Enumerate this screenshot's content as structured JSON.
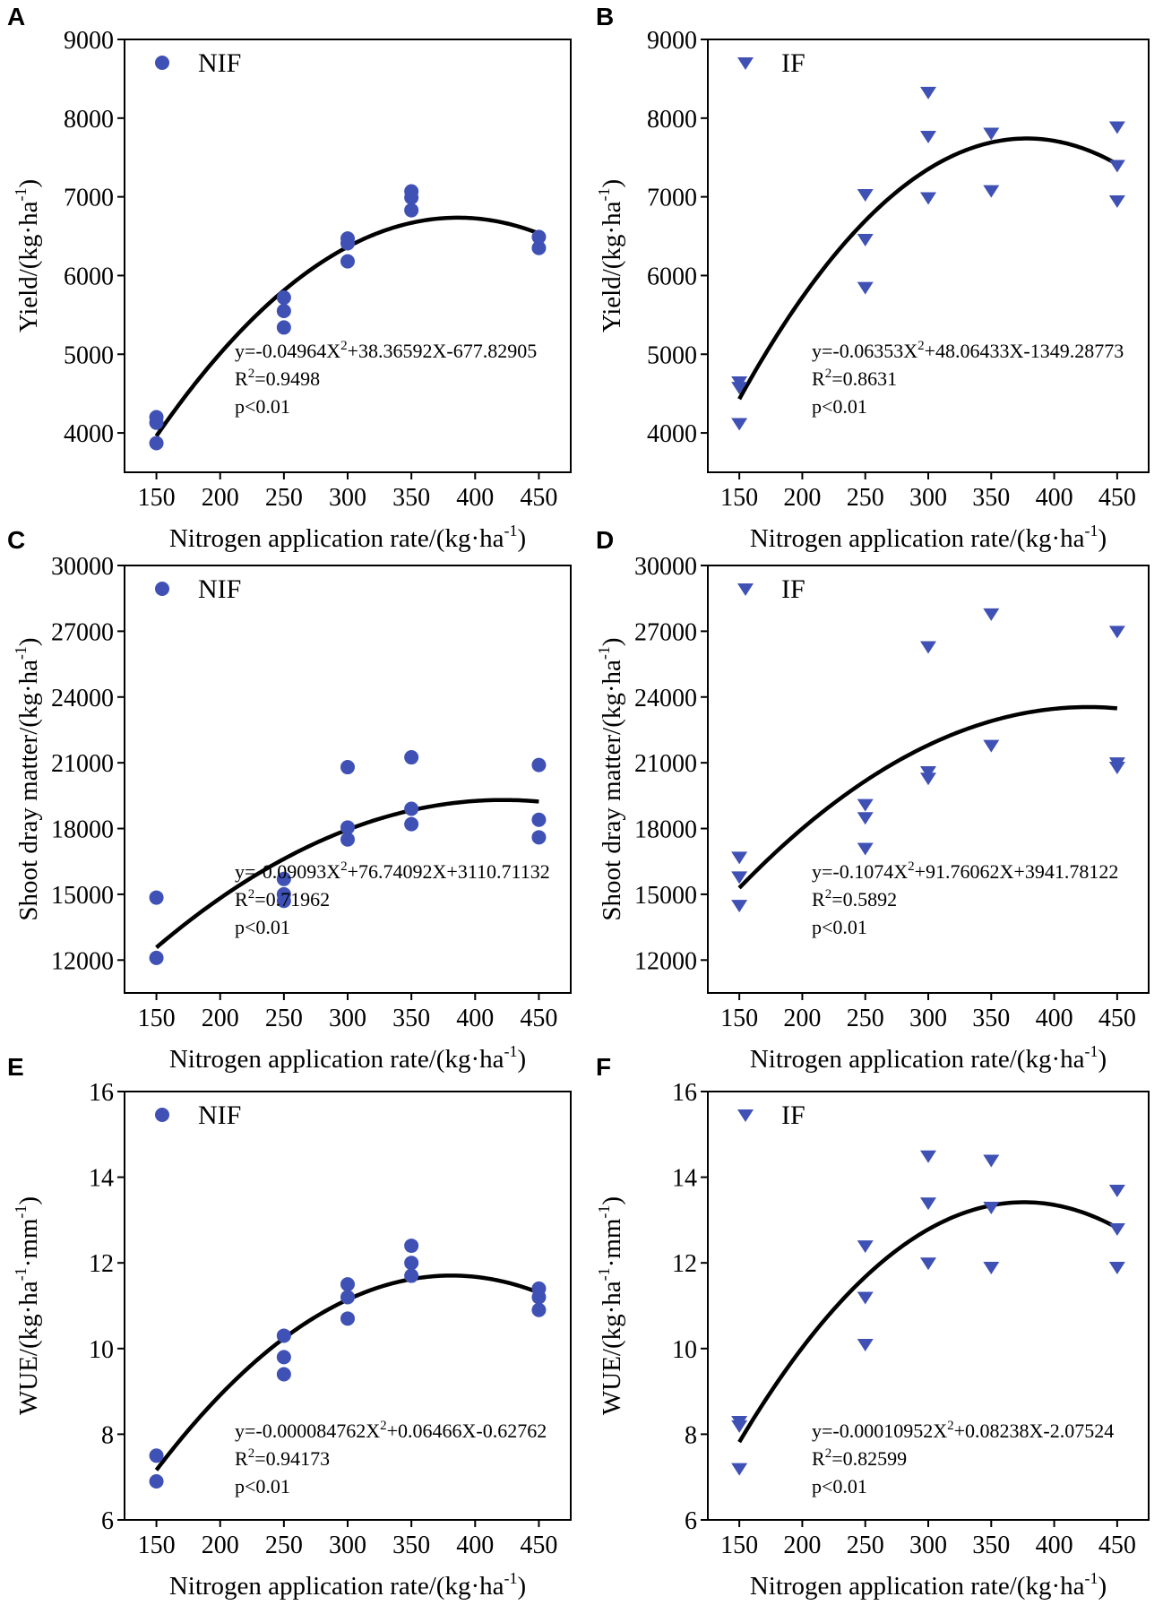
{
  "chart_data": [
    {
      "panel": "A",
      "type": "scatter",
      "marker": "circle",
      "legend": "NIF",
      "ylabel": "Yield/(kg·ha",
      "ylabel_sup": "-1",
      "ylabel_end": ")",
      "xlabel": "Nitrogen application rate/(kg·ha",
      "xlabel_sup": "-1",
      "xlabel_end": ")",
      "xlim": [
        125,
        475
      ],
      "ylim": [
        3500,
        9000
      ],
      "xticks": [
        150,
        200,
        250,
        300,
        350,
        400,
        450
      ],
      "yticks": [
        4000,
        5000,
        6000,
        7000,
        8000,
        9000
      ],
      "x": [
        150,
        150,
        150,
        250,
        250,
        250,
        300,
        300,
        300,
        350,
        350,
        350,
        450,
        450
      ],
      "y": [
        3870,
        4130,
        4200,
        5340,
        5550,
        5720,
        6180,
        6410,
        6470,
        6830,
        6990,
        7070,
        6350,
        6490
      ],
      "fit": {
        "a": -0.04964,
        "b": 38.36592,
        "c": -677.82905,
        "x_range": [
          150,
          450
        ]
      },
      "equation": [
        "y=-0.04964X",
        "2",
        "+38.36592X-677.82905"
      ],
      "r2": "=0.9498",
      "p": "p<0.01"
    },
    {
      "panel": "B",
      "type": "scatter",
      "marker": "triangle",
      "legend": "IF",
      "ylabel": "Yield/(kg·ha",
      "ylabel_sup": "-1",
      "ylabel_end": ")",
      "xlabel": "Nitrogen application rate/(kg·ha",
      "xlabel_sup": "-1",
      "xlabel_end": ")",
      "xlim": [
        125,
        475
      ],
      "ylim": [
        3500,
        9000
      ],
      "xticks": [
        150,
        200,
        250,
        300,
        350,
        400,
        450
      ],
      "yticks": [
        4000,
        5000,
        6000,
        7000,
        8000,
        9000
      ],
      "x": [
        150,
        150,
        150,
        250,
        250,
        250,
        300,
        300,
        300,
        350,
        350,
        450,
        450,
        450
      ],
      "y": [
        4120,
        4580,
        4650,
        5850,
        6460,
        7030,
        6990,
        7770,
        8330,
        7080,
        7810,
        6950,
        7400,
        7890
      ],
      "fit": {
        "a": -0.06353,
        "b": 48.06433,
        "c": -1349.28773,
        "x_range": [
          150,
          450
        ]
      },
      "equation": [
        "y=-0.06353X",
        "2",
        "+48.06433X-1349.28773"
      ],
      "r2": "=0.8631",
      "p": "p<0.01"
    },
    {
      "panel": "C",
      "type": "scatter",
      "marker": "circle",
      "legend": "NIF",
      "ylabel": "Shoot dray matter/(kg·ha",
      "ylabel_sup": "-1",
      "ylabel_end": ")",
      "xlabel": "Nitrogen application rate/(kg·ha",
      "xlabel_sup": "-1",
      "xlabel_end": ")",
      "xlim": [
        125,
        475
      ],
      "ylim": [
        10500,
        30000
      ],
      "xticks": [
        150,
        200,
        250,
        300,
        350,
        400,
        450
      ],
      "yticks": [
        12000,
        15000,
        18000,
        21000,
        24000,
        27000,
        30000
      ],
      "x": [
        150,
        150,
        250,
        250,
        250,
        300,
        300,
        300,
        350,
        350,
        350,
        450,
        450,
        450
      ],
      "y": [
        12100,
        14850,
        14700,
        15000,
        15700,
        17500,
        18050,
        20800,
        18200,
        18900,
        21250,
        17600,
        18400,
        20900
      ],
      "fit": {
        "a": -0.09093,
        "b": 76.74092,
        "c": 3110.71132,
        "x_range": [
          150,
          450
        ]
      },
      "equation": [
        "y=-0.09093X",
        "2",
        "+76.74092X+3110.71132"
      ],
      "r2": "=0.71962",
      "p": "p<0.01"
    },
    {
      "panel": "D",
      "type": "scatter",
      "marker": "triangle",
      "legend": "IF",
      "ylabel": "Shoot dray matter/(kg·ha",
      "ylabel_sup": "-1",
      "ylabel_end": ")",
      "xlabel": "Nitrogen application rate/(kg·ha",
      "xlabel_sup": "-1",
      "xlabel_end": ")",
      "xlim": [
        125,
        475
      ],
      "ylim": [
        10500,
        30000
      ],
      "xticks": [
        150,
        200,
        250,
        300,
        350,
        400,
        450
      ],
      "yticks": [
        12000,
        15000,
        18000,
        21000,
        24000,
        27000,
        30000
      ],
      "x": [
        150,
        150,
        150,
        250,
        250,
        250,
        300,
        300,
        300,
        350,
        350,
        450,
        450,
        450
      ],
      "y": [
        14500,
        15800,
        16700,
        17100,
        18500,
        19100,
        20300,
        20600,
        26300,
        21800,
        27800,
        20800,
        21000,
        27000
      ],
      "fit": {
        "a": -0.1074,
        "b": 91.76062,
        "c": 3941.78122,
        "x_range": [
          150,
          450
        ]
      },
      "equation": [
        "y=-0.1074X",
        "2",
        "+91.76062X+3941.78122"
      ],
      "r2": "=0.5892",
      "p": "p<0.01"
    },
    {
      "panel": "E",
      "type": "scatter",
      "marker": "circle",
      "legend": "NIF",
      "ylabel": "WUE/(kg·ha",
      "ylabel_sup": "-1",
      "ylabel_mid": "·mm",
      "ylabel_sup2": "-1",
      "ylabel_end": ")",
      "xlabel": "Nitrogen application rate/(kg·ha",
      "xlabel_sup": "-1",
      "xlabel_end": ")",
      "xlim": [
        125,
        475
      ],
      "ylim": [
        6,
        16
      ],
      "xticks": [
        150,
        200,
        250,
        300,
        350,
        400,
        450
      ],
      "yticks": [
        6,
        8,
        10,
        12,
        14,
        16
      ],
      "x": [
        150,
        150,
        250,
        250,
        250,
        300,
        300,
        300,
        350,
        350,
        350,
        450,
        450,
        450
      ],
      "y": [
        6.9,
        7.5,
        9.4,
        9.8,
        10.3,
        10.7,
        11.2,
        11.5,
        11.7,
        12.0,
        12.4,
        10.9,
        11.2,
        11.4
      ],
      "fit": {
        "a": -8.4762e-05,
        "b": 0.06466,
        "c": -0.62762,
        "x_range": [
          150,
          450
        ]
      },
      "equation": [
        "y=-0.000084762X",
        "2",
        "+0.06466X-0.62762"
      ],
      "r2": "=0.94173",
      "p": "p<0.01"
    },
    {
      "panel": "F",
      "type": "scatter",
      "marker": "triangle",
      "legend": "IF",
      "ylabel": "WUE/(kg·ha",
      "ylabel_sup": "-1",
      "ylabel_mid": "·mm",
      "ylabel_sup2": "-1",
      "ylabel_end": ")",
      "xlabel": "Nitrogen application rate/(kg·ha",
      "xlabel_sup": "-1",
      "xlabel_end": ")",
      "xlim": [
        125,
        475
      ],
      "ylim": [
        6,
        16
      ],
      "xticks": [
        150,
        200,
        250,
        300,
        350,
        400,
        450
      ],
      "yticks": [
        6,
        8,
        10,
        12,
        14,
        16
      ],
      "x": [
        150,
        150,
        150,
        250,
        250,
        250,
        300,
        300,
        300,
        350,
        350,
        350,
        450,
        450,
        450
      ],
      "y": [
        7.2,
        8.2,
        8.3,
        10.1,
        11.2,
        12.4,
        12.0,
        13.4,
        14.5,
        11.9,
        13.3,
        14.4,
        11.9,
        12.8,
        13.7
      ],
      "fit": {
        "a": -0.00010952,
        "b": 0.08238,
        "c": -2.07524,
        "x_range": [
          150,
          450
        ]
      },
      "equation": [
        "y=-0.00010952X",
        "2",
        "+0.08238X-2.07524"
      ],
      "r2": "=0.82599",
      "p": "p<0.01"
    }
  ],
  "colors": {
    "marker": "#3f51b5",
    "line": "#000000"
  },
  "r2_label": "R",
  "r2_sup": "2"
}
